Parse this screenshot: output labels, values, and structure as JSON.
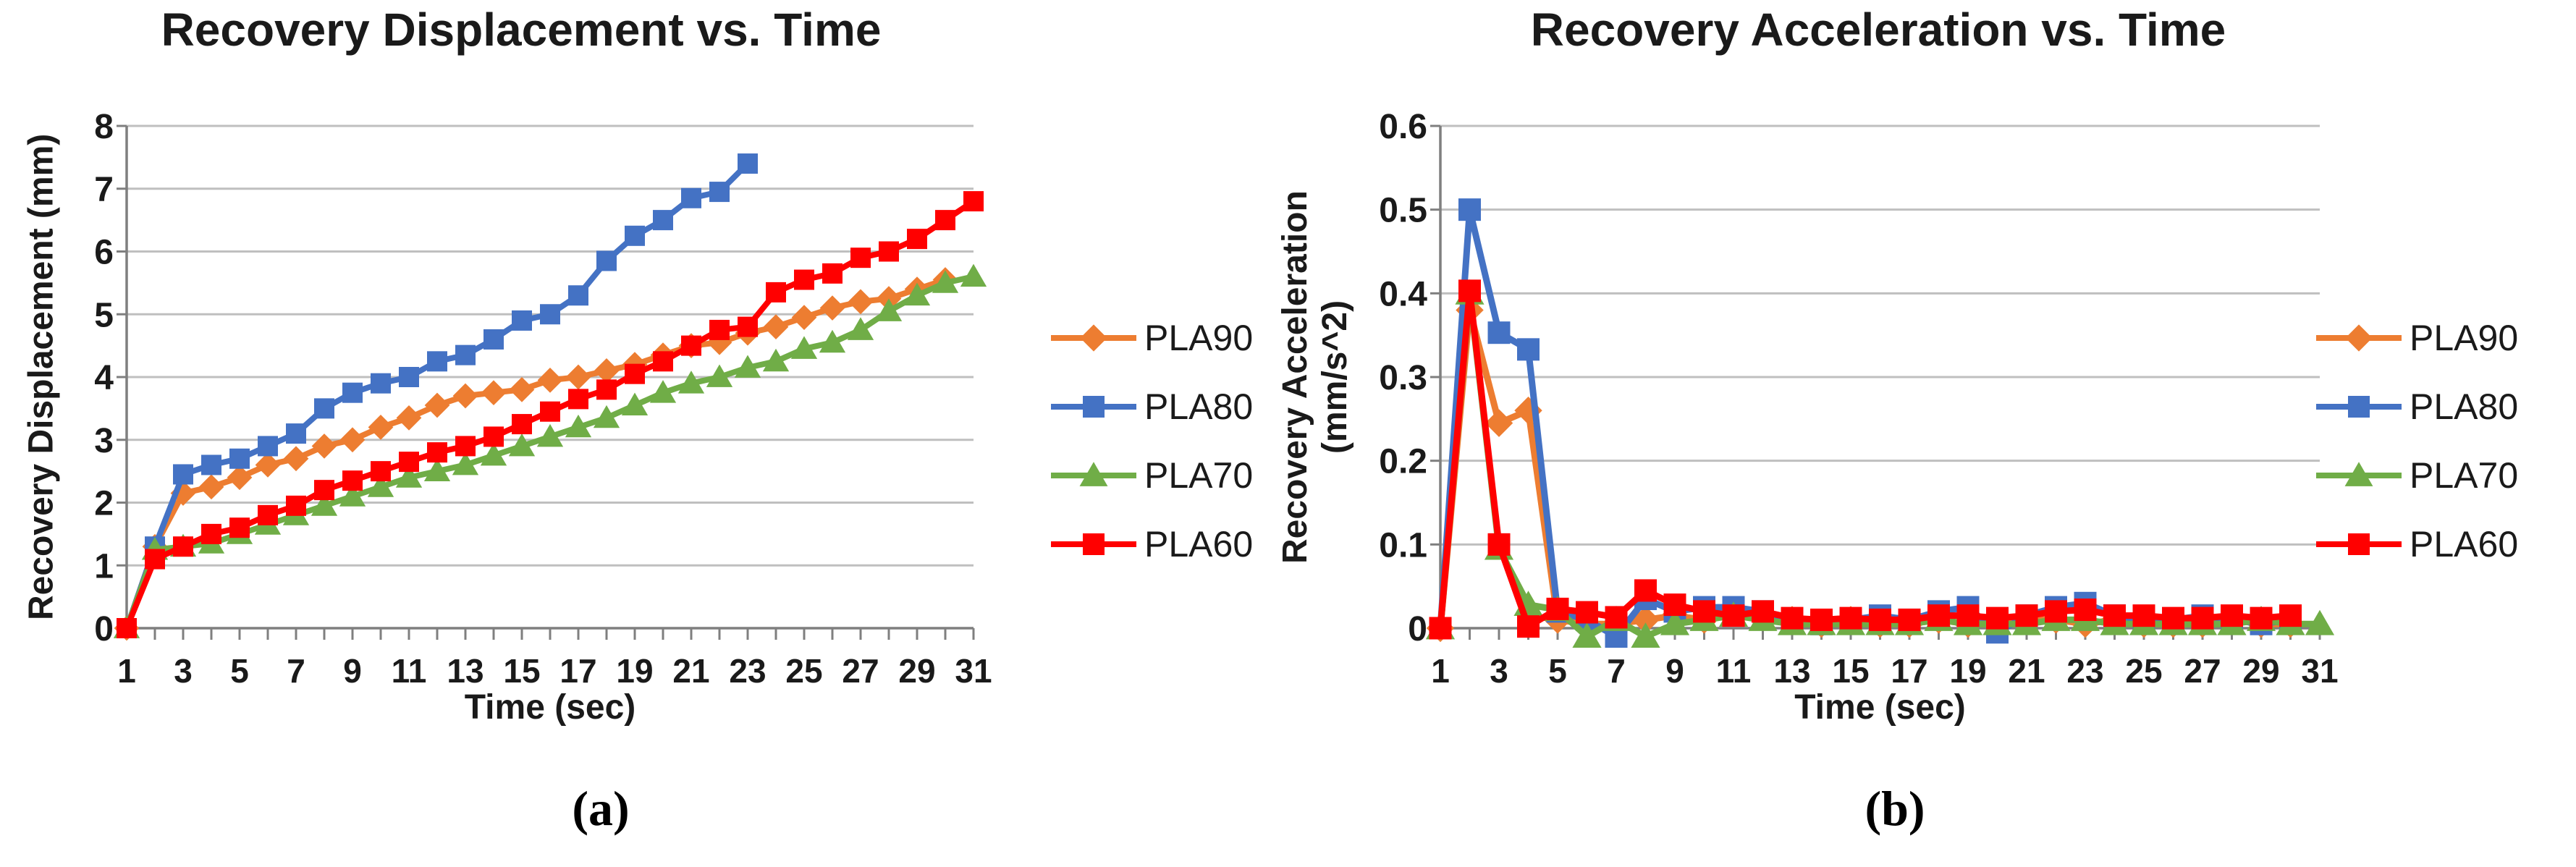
{
  "page": {
    "background": "#ffffff"
  },
  "colors": {
    "pla90": "#ED7D31",
    "pla80": "#4472C4",
    "pla70": "#70AD47",
    "pla60": "#FF0000",
    "gridline": "#BFBFBF",
    "axis": "#7F7F7F",
    "text": "#1a1a1a"
  },
  "figure": {
    "captions": [
      "(a)",
      "(b)"
    ]
  },
  "chart_data": [
    {
      "type": "line",
      "title": "Recovery Displacement vs. Time",
      "xlabel": "Time (sec)",
      "ylabel": "Recovery Displacement (mm)",
      "x": [
        1,
        2,
        3,
        4,
        5,
        6,
        7,
        8,
        9,
        10,
        11,
        12,
        13,
        14,
        15,
        16,
        17,
        18,
        19,
        20,
        21,
        22,
        23,
        24,
        25,
        26,
        27,
        28,
        29,
        30,
        31
      ],
      "x_tick_labels": [
        "1",
        "3",
        "5",
        "7",
        "9",
        "11",
        "13",
        "15",
        "17",
        "19",
        "21",
        "23",
        "25",
        "27",
        "29",
        "31"
      ],
      "ylim": [
        0,
        8
      ],
      "yticks": [
        0,
        1,
        2,
        3,
        4,
        5,
        6,
        7,
        8
      ],
      "ytick_labels": [
        "0",
        "1",
        "2",
        "3",
        "4",
        "5",
        "6",
        "7",
        "8"
      ],
      "grid": true,
      "legend_position": "right",
      "series": [
        {
          "name": "PLA90",
          "color": "#ED7D31",
          "marker": "diamond",
          "values": [
            0,
            1.3,
            2.15,
            2.25,
            2.4,
            2.6,
            2.7,
            2.9,
            3.0,
            3.2,
            3.35,
            3.55,
            3.7,
            3.75,
            3.8,
            3.95,
            4.0,
            4.1,
            4.2,
            4.35,
            4.5,
            4.55,
            4.7,
            4.8,
            4.95,
            5.1,
            5.2,
            5.25,
            5.4,
            5.55,
            null
          ]
        },
        {
          "name": "PLA80",
          "color": "#4472C4",
          "marker": "square",
          "values": [
            0,
            1.3,
            2.45,
            2.6,
            2.7,
            2.9,
            3.1,
            3.5,
            3.75,
            3.9,
            4.0,
            4.25,
            4.35,
            4.6,
            4.9,
            5.0,
            5.3,
            5.85,
            6.25,
            6.5,
            6.85,
            6.95,
            7.4,
            null,
            null,
            null,
            null,
            null,
            null,
            null,
            null
          ]
        },
        {
          "name": "PLA70",
          "color": "#70AD47",
          "marker": "triangle",
          "values": [
            0,
            1.25,
            1.3,
            1.35,
            1.5,
            1.65,
            1.8,
            1.95,
            2.1,
            2.25,
            2.4,
            2.5,
            2.6,
            2.75,
            2.9,
            3.05,
            3.2,
            3.35,
            3.55,
            3.75,
            3.9,
            4.0,
            4.15,
            4.25,
            4.45,
            4.55,
            4.75,
            5.05,
            5.3,
            5.5,
            5.6
          ]
        },
        {
          "name": "PLA60",
          "color": "#FF0000",
          "marker": "square",
          "values": [
            0,
            1.1,
            1.3,
            1.5,
            1.6,
            1.8,
            1.95,
            2.2,
            2.35,
            2.5,
            2.65,
            2.8,
            2.9,
            3.05,
            3.25,
            3.45,
            3.65,
            3.8,
            4.05,
            4.25,
            4.5,
            4.75,
            4.8,
            5.35,
            5.55,
            5.65,
            5.9,
            6.0,
            6.2,
            6.5,
            6.8
          ]
        }
      ]
    },
    {
      "type": "line",
      "title": "Recovery Acceleration vs. Time",
      "xlabel": "Time (sec)",
      "ylabel": "Recovery Acceleration (mm/s^2)",
      "x": [
        1,
        2,
        3,
        4,
        5,
        6,
        7,
        8,
        9,
        10,
        11,
        12,
        13,
        14,
        15,
        16,
        17,
        18,
        19,
        20,
        21,
        22,
        23,
        24,
        25,
        26,
        27,
        28,
        29,
        30,
        31
      ],
      "x_tick_labels": [
        "1",
        "3",
        "5",
        "7",
        "9",
        "11",
        "13",
        "15",
        "17",
        "19",
        "21",
        "23",
        "25",
        "27",
        "29",
        "31"
      ],
      "ylim": [
        0,
        0.6
      ],
      "yticks": [
        0,
        0.1,
        0.2,
        0.3,
        0.4,
        0.5,
        0.6
      ],
      "ytick_labels": [
        "0",
        "0.1",
        "0.2",
        "0.3",
        "0.4",
        "0.5",
        "0.6"
      ],
      "grid": true,
      "legend_position": "right",
      "series": [
        {
          "name": "PLA90",
          "color": "#ED7D31",
          "marker": "diamond",
          "values": [
            0,
            0.38,
            0.245,
            0.26,
            0.01,
            0.005,
            0.005,
            0.01,
            0.015,
            0.01,
            0.02,
            0.015,
            0.01,
            0.005,
            0.01,
            0.005,
            0.005,
            0.01,
            0.005,
            0.005,
            0.01,
            0.01,
            0.005,
            0.01,
            0.005,
            0.005,
            0.005,
            0.01,
            0.005,
            0.005,
            null
          ]
        },
        {
          "name": "PLA80",
          "color": "#4472C4",
          "marker": "square",
          "values": [
            0,
            0.5,
            0.353,
            0.333,
            0.02,
            0.01,
            -0.01,
            0.035,
            0.02,
            0.025,
            0.025,
            0.02,
            0.01,
            0.005,
            0.01,
            0.015,
            0.01,
            0.02,
            0.025,
            -0.005,
            0.015,
            0.025,
            0.03,
            0.015,
            0.01,
            0.01,
            0.015,
            0.01,
            0.005,
            0.01,
            null
          ]
        },
        {
          "name": "PLA70",
          "color": "#70AD47",
          "marker": "triangle",
          "values": [
            0,
            0.4,
            0.095,
            0.028,
            0.022,
            -0.01,
            0.01,
            -0.01,
            0.005,
            0.01,
            0.015,
            0.01,
            0.005,
            0.005,
            0.005,
            0.005,
            0.005,
            0.01,
            0.005,
            0.005,
            0.005,
            0.01,
            0.01,
            0.005,
            0.005,
            0.005,
            0.005,
            0.005,
            0.01,
            0.005,
            0.005
          ]
        },
        {
          "name": "PLA60",
          "color": "#FF0000",
          "marker": "square",
          "values": [
            0,
            0.403,
            0.1,
            0.002,
            0.023,
            0.019,
            0.013,
            0.045,
            0.028,
            0.02,
            0.015,
            0.02,
            0.012,
            0.01,
            0.012,
            0.01,
            0.01,
            0.015,
            0.015,
            0.012,
            0.015,
            0.02,
            0.022,
            0.015,
            0.015,
            0.012,
            0.012,
            0.015,
            0.012,
            0.015,
            null
          ]
        }
      ]
    }
  ]
}
